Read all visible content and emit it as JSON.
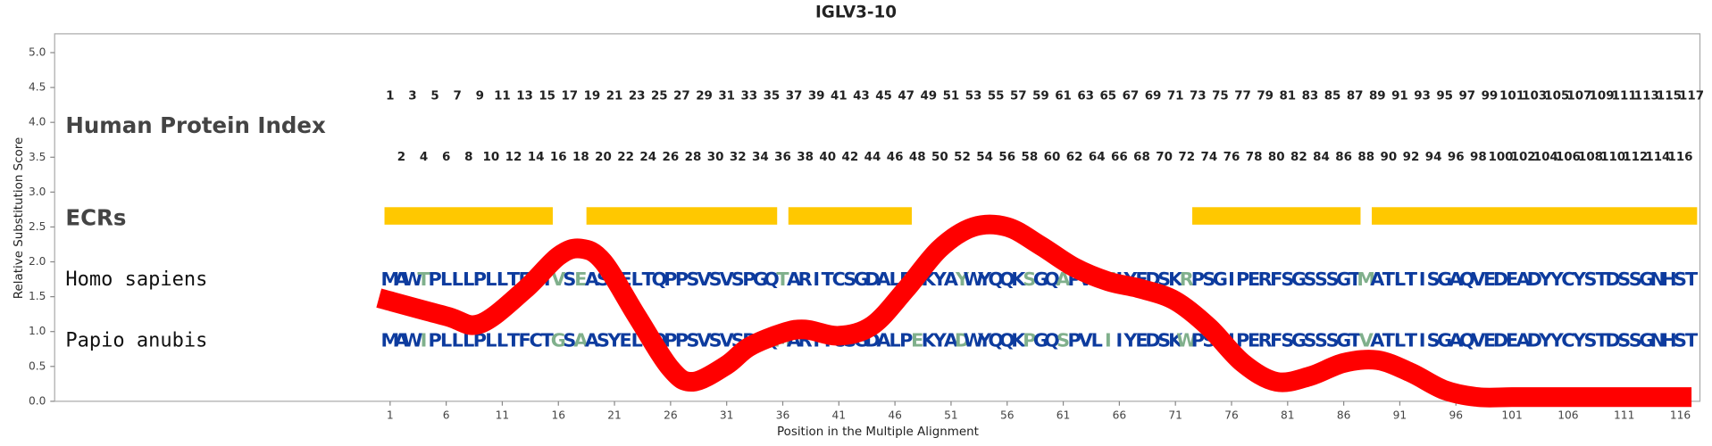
{
  "chart_data": {
    "type": "line",
    "title": "IGLV3-10",
    "xlabel": "Position in the Multiple Alignment",
    "ylabel": "Relative Substitution Score",
    "xlim": [
      -28.9,
      117.75
    ],
    "ylim": [
      0,
      5.27
    ],
    "yticks": [
      {
        "value": 0,
        "label": "0.0"
      },
      {
        "value": 0.5,
        "label": "0.5"
      },
      {
        "value": 1,
        "label": "1.0"
      },
      {
        "value": 1.5,
        "label": "1.5"
      },
      {
        "value": 2,
        "label": "2.0"
      },
      {
        "value": 2.5,
        "label": "2.5"
      },
      {
        "value": 3,
        "label": "3.0"
      },
      {
        "value": 3.5,
        "label": "3.5"
      },
      {
        "value": 4,
        "label": "4.0"
      },
      {
        "value": 4.5,
        "label": "4.5"
      },
      {
        "value": 5,
        "label": "5.0"
      }
    ],
    "xticks": [
      1,
      6,
      11,
      16,
      21,
      26,
      31,
      36,
      41,
      46,
      51,
      56,
      61,
      66,
      71,
      76,
      81,
      86,
      91,
      96,
      101,
      106,
      111,
      116
    ],
    "series": [
      {
        "color": "#ff0000",
        "x": [
          0,
          6,
          9,
          13,
          16,
          18,
          20,
          23,
          26,
          28,
          31,
          33,
          36,
          38,
          41,
          44,
          47,
          50,
          53,
          56,
          59,
          62,
          65,
          68,
          71,
          74,
          77,
          80,
          83,
          86,
          89,
          92,
          95,
          98,
          101,
          105,
          110,
          117
        ],
        "values": [
          1.48,
          1.22,
          1.11,
          1.6,
          2.08,
          2.19,
          2.0,
          1.22,
          0.47,
          0.28,
          0.52,
          0.78,
          0.98,
          1.03,
          0.94,
          1.09,
          1.61,
          2.19,
          2.5,
          2.5,
          2.23,
          1.92,
          1.72,
          1.61,
          1.44,
          1.06,
          0.55,
          0.28,
          0.36,
          0.55,
          0.59,
          0.41,
          0.16,
          0.06,
          0.06,
          0.06,
          0.06,
          0.06
        ]
      }
    ],
    "protein_index_label": "Human Protein Index",
    "protein_index": [
      1,
      2,
      3,
      4,
      5,
      6,
      7,
      8,
      9,
      10,
      11,
      12,
      13,
      14,
      15,
      16,
      17,
      18,
      19,
      20,
      21,
      22,
      23,
      24,
      25,
      26,
      27,
      28,
      29,
      30,
      31,
      32,
      33,
      34,
      35,
      36,
      37,
      38,
      39,
      40,
      41,
      42,
      43,
      44,
      45,
      46,
      47,
      48,
      49,
      50,
      51,
      52,
      53,
      54,
      55,
      56,
      57,
      58,
      59,
      60,
      61,
      62,
      63,
      64,
      65,
      66,
      67,
      68,
      69,
      70,
      71,
      72,
      73,
      74,
      75,
      76,
      77,
      78,
      79,
      80,
      81,
      82,
      83,
      84,
      85,
      86,
      87,
      88,
      89,
      90,
      91,
      92,
      93,
      94,
      95,
      96,
      97,
      98,
      99,
      100,
      101,
      102,
      103,
      104,
      105,
      106,
      107,
      108,
      109,
      110,
      111,
      112,
      113,
      114,
      115,
      116,
      117
    ],
    "ecr_label": "ECRs",
    "ecr_color": "#ffc800",
    "ecrs": [
      [
        1,
        15
      ],
      [
        19,
        35
      ],
      [
        37,
        47
      ],
      [
        73,
        87
      ],
      [
        89,
        117
      ]
    ],
    "residue_colors": {
      "conserved": "#0d3b9e",
      "variable": "#80b08c"
    },
    "sequences": [
      {
        "name": "Homo sapiens",
        "residues": [
          "M",
          "A",
          "W",
          "T",
          "P",
          "L",
          "L",
          "L",
          "P",
          "L",
          "L",
          "T",
          "F",
          "C",
          "T",
          "V",
          "S",
          "E",
          "A",
          "S",
          "Y",
          "E",
          "L",
          "T",
          "Q",
          "P",
          "P",
          "S",
          "V",
          "S",
          "V",
          "S",
          "P",
          "G",
          "Q",
          "T",
          "A",
          "R",
          "I",
          "T",
          "C",
          "S",
          "G",
          "D",
          "A",
          "L",
          "P",
          "K",
          "K",
          "Y",
          "A",
          "Y",
          "W",
          "Y",
          "Q",
          "Q",
          "K",
          "S",
          "G",
          "Q",
          "A",
          "P",
          "V",
          "L",
          "V",
          "I",
          "Y",
          "E",
          "D",
          "S",
          "K",
          "R",
          "P",
          "S",
          "G",
          "I",
          "P",
          "E",
          "R",
          "F",
          "S",
          "G",
          "S",
          "S",
          "S",
          "G",
          "T",
          "M",
          "A",
          "T",
          "L",
          "T",
          "I",
          "S",
          "G",
          "A",
          "Q",
          "V",
          "E",
          "D",
          "E",
          "A",
          "D",
          "Y",
          "Y",
          "C",
          "Y",
          "S",
          "T",
          "D",
          "S",
          "S",
          "G",
          "N",
          "H",
          "S",
          "T"
        ]
      },
      {
        "name": "Papio anubis",
        "residues": [
          "M",
          "A",
          "W",
          "I",
          "P",
          "L",
          "L",
          "L",
          "P",
          "L",
          "L",
          "T",
          "F",
          "C",
          "T",
          "G",
          "S",
          "A",
          "A",
          "S",
          "Y",
          "E",
          "L",
          "T",
          "Q",
          "P",
          "P",
          "S",
          "V",
          "S",
          "V",
          "S",
          "P",
          "G",
          "Q",
          "M",
          "A",
          "R",
          "I",
          "T",
          "C",
          "S",
          "G",
          "D",
          "A",
          "L",
          "P",
          "E",
          "K",
          "Y",
          "A",
          "D",
          "W",
          "Y",
          "Q",
          "Q",
          "K",
          "P",
          "G",
          "Q",
          "S",
          "P",
          "V",
          "L",
          "I",
          "I",
          "Y",
          "E",
          "D",
          "S",
          "K",
          "W",
          "P",
          "S",
          "G",
          "I",
          "P",
          "E",
          "R",
          "F",
          "S",
          "G",
          "S",
          "S",
          "S",
          "G",
          "T",
          "V",
          "A",
          "T",
          "L",
          "T",
          "I",
          "S",
          "G",
          "A",
          "Q",
          "V",
          "E",
          "D",
          "E",
          "A",
          "D",
          "Y",
          "Y",
          "C",
          "Y",
          "S",
          "T",
          "D",
          "S",
          "S",
          "G",
          "N",
          "H",
          "S",
          "T"
        ]
      }
    ]
  }
}
